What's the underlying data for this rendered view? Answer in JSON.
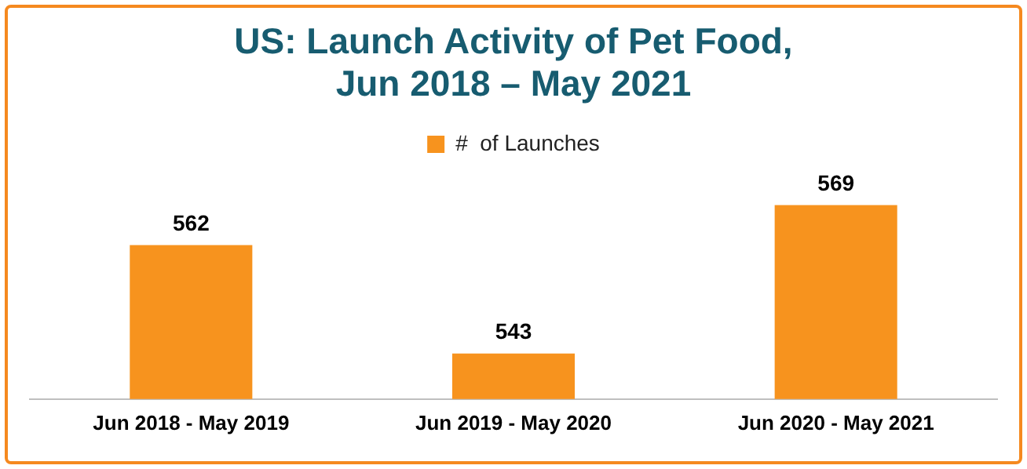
{
  "chart_data": {
    "type": "bar",
    "title": "US: Launch Activity of Pet Food, Jun 2018 – May 2021",
    "categories": [
      "Jun 2018 - May 2019",
      "Jun 2019 - May 2020",
      "Jun 2020 - May 2021"
    ],
    "series": [
      {
        "name": "#  of Launches",
        "color": "#f7931e",
        "values": [
          562,
          543,
          569
        ]
      }
    ],
    "tick_labels": "x",
    "grid": false,
    "legend": "top",
    "data_labels": true
  }
}
